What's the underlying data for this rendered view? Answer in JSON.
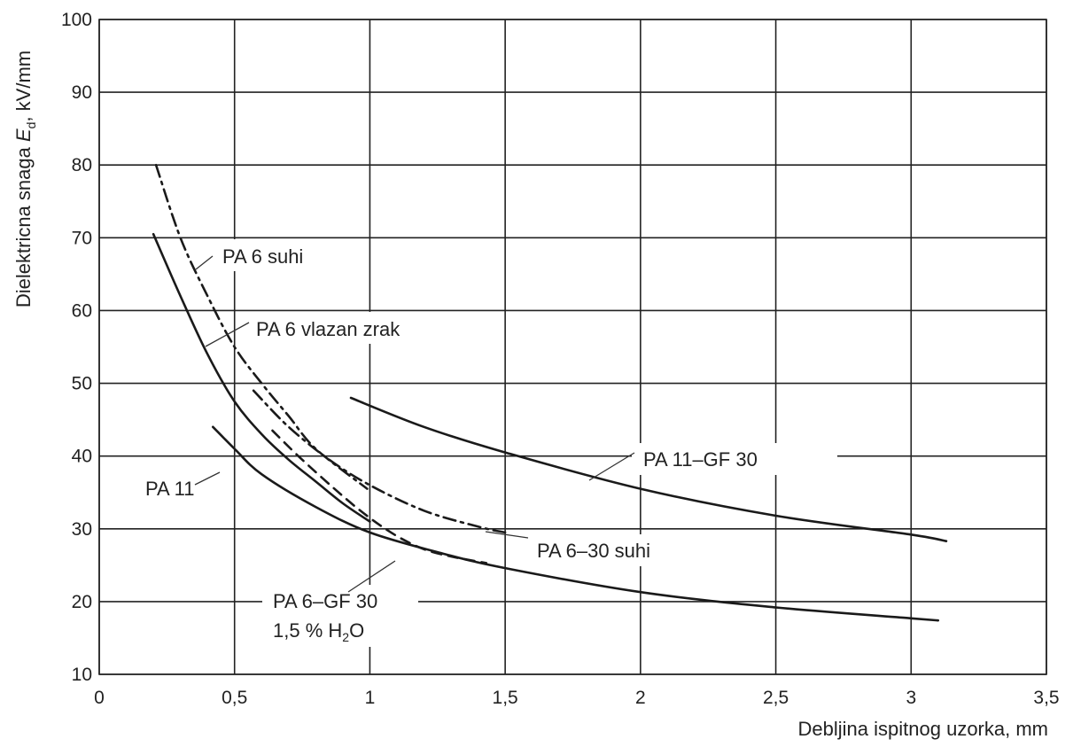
{
  "chart_data": {
    "type": "line",
    "xlabel": "Debljina ispitnog uzorka, mm",
    "ylabel": {
      "main": "Dielektricna snaga ",
      "symbol": "E",
      "subscript": "d",
      "unit": ", kV/mm"
    },
    "xlim": [
      0,
      3.5
    ],
    "ylim": [
      10,
      100
    ],
    "x_ticks": [
      {
        "value": 0,
        "label": "0"
      },
      {
        "value": 0.5,
        "label": "0,5"
      },
      {
        "value": 1,
        "label": "1"
      },
      {
        "value": 1.5,
        "label": "1,5"
      },
      {
        "value": 2,
        "label": "2"
      },
      {
        "value": 2.5,
        "label": "2,5"
      },
      {
        "value": 3,
        "label": "3"
      },
      {
        "value": 3.5,
        "label": "3,5"
      }
    ],
    "y_ticks": [
      {
        "value": 10,
        "label": "10"
      },
      {
        "value": 20,
        "label": "20"
      },
      {
        "value": 30,
        "label": "30"
      },
      {
        "value": 40,
        "label": "40"
      },
      {
        "value": 50,
        "label": "50"
      },
      {
        "value": 60,
        "label": "60"
      },
      {
        "value": 70,
        "label": "70"
      },
      {
        "value": 80,
        "label": "80"
      },
      {
        "value": 90,
        "label": "90"
      },
      {
        "value": 100,
        "label": "100"
      }
    ],
    "grid": true,
    "series": [
      {
        "name": "PA 6 suhi",
        "style": "dashdot",
        "x": [
          0.21,
          0.3,
          0.4,
          0.5,
          0.6,
          0.7,
          0.8,
          0.99
        ],
        "y": [
          80,
          70,
          62,
          55,
          50,
          45.5,
          41,
          35.5
        ]
      },
      {
        "name": "PA 6 vlazan zrak",
        "style": "solid",
        "x": [
          0.2,
          0.3,
          0.4,
          0.5,
          0.6,
          0.7,
          0.8,
          0.9,
          1.0
        ],
        "y": [
          70.5,
          62,
          54,
          47.5,
          43,
          39.5,
          36.5,
          33.5,
          31
        ]
      },
      {
        "name": "PA 11",
        "style": "solid",
        "x": [
          0.42,
          0.5,
          0.6,
          0.8,
          1.0,
          1.25,
          1.5,
          2.0,
          2.5,
          3.0,
          3.1
        ],
        "y": [
          44,
          41,
          37.5,
          33,
          29.5,
          26.8,
          24.6,
          21.3,
          19.2,
          17.7,
          17.4
        ]
      },
      {
        "name": "PA 11–GF 30",
        "style": "solid",
        "x": [
          0.93,
          1.2,
          1.5,
          2.0,
          2.5,
          3.0,
          3.13
        ],
        "y": [
          48,
          44,
          40.5,
          35.5,
          31.8,
          29.2,
          28.3
        ]
      },
      {
        "name": "PA 6–30 suhi",
        "style": "dashdot",
        "x": [
          0.57,
          0.7,
          0.85,
          1.0,
          1.2,
          1.4,
          1.5
        ],
        "y": [
          49,
          44,
          39.5,
          36,
          32.5,
          30.3,
          29.5
        ]
      },
      {
        "name": "PA 6–GF 30 1,5 % H2O",
        "style": "dashed",
        "x": [
          0.64,
          0.75,
          0.9,
          1.0,
          1.1,
          1.2,
          1.3,
          1.43
        ],
        "y": [
          43.5,
          39.5,
          34.5,
          31.5,
          29,
          27.2,
          26.2,
          25.3
        ]
      }
    ],
    "annotations": [
      {
        "id": "pa6-suhi",
        "text": "PA 6 suhi"
      },
      {
        "id": "pa6-vlazan",
        "text": "PA 6 vlazan zrak"
      },
      {
        "id": "pa11",
        "text": "PA 11"
      },
      {
        "id": "pa11-gf30",
        "text": "PA 11–GF 30"
      },
      {
        "id": "pa6-30-suhi",
        "text": "PA 6–30 suhi"
      },
      {
        "id": "pa6-gf30-h2o",
        "line1": "PA 6–GF 30",
        "line2_prefix": "1,5 % H",
        "line2_sub": "2",
        "line2_suffix": "O"
      }
    ]
  }
}
